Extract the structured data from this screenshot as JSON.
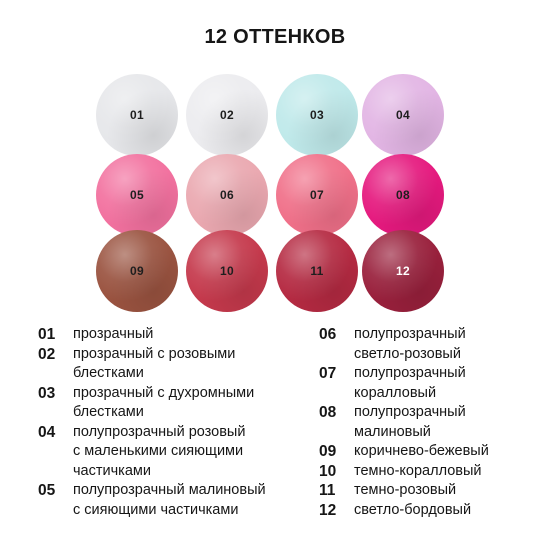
{
  "title": "12 ОТТЕНКОВ",
  "swatches": [
    {
      "label": "01",
      "color": "#e6e7ea",
      "text_color": "#1e1e1e"
    },
    {
      "label": "02",
      "color": "#ececef",
      "text_color": "#1e1e1e"
    },
    {
      "label": "03",
      "color": "#bfe9ea",
      "text_color": "#1e1e1e"
    },
    {
      "label": "04",
      "color": "#e2b5e4",
      "text_color": "#1e1e1e"
    },
    {
      "label": "05",
      "color": "#f2719f",
      "text_color": "#1e1e1e"
    },
    {
      "label": "06",
      "color": "#eaa8b0",
      "text_color": "#1e1e1e"
    },
    {
      "label": "07",
      "color": "#f07089",
      "text_color": "#1e1e1e"
    },
    {
      "label": "08",
      "color": "#e5197e",
      "text_color": "#1e1e1e"
    },
    {
      "label": "09",
      "color": "#9a5340",
      "text_color": "#1e1e1e"
    },
    {
      "label": "10",
      "color": "#c5394c",
      "text_color": "#1e1e1e"
    },
    {
      "label": "11",
      "color": "#b52a42",
      "text_color": "#1e1e1e"
    },
    {
      "label": "12",
      "color": "#99203c",
      "text_color": "#ffffff"
    }
  ],
  "legend_left": [
    {
      "code": "01",
      "lines": [
        "прозрачный"
      ]
    },
    {
      "code": "02",
      "lines": [
        "прозрачный с розовыми",
        "блестками"
      ]
    },
    {
      "code": "03",
      "lines": [
        "прозрачный с духромными",
        "блестками"
      ]
    },
    {
      "code": "04",
      "lines": [
        "полупрозрачный розовый",
        "с маленькими сияющими",
        "частичками"
      ]
    },
    {
      "code": "05",
      "lines": [
        "полупрозрачный малиновый",
        "с сияющими частичками"
      ]
    }
  ],
  "legend_right": [
    {
      "code": "06",
      "lines": [
        "полупрозрачный",
        "светло-розовый"
      ]
    },
    {
      "code": "07",
      "lines": [
        "полупрозрачный",
        "коралловый"
      ]
    },
    {
      "code": "08",
      "lines": [
        "полупрозрачный",
        "малиновый"
      ]
    },
    {
      "code": "09",
      "lines": [
        "коричнево-бежевый"
      ]
    },
    {
      "code": "10",
      "lines": [
        "темно-коралловый"
      ]
    },
    {
      "code": "11",
      "lines": [
        "темно-розовый"
      ]
    },
    {
      "code": "12",
      "lines": [
        "светло-бордовый"
      ]
    }
  ]
}
